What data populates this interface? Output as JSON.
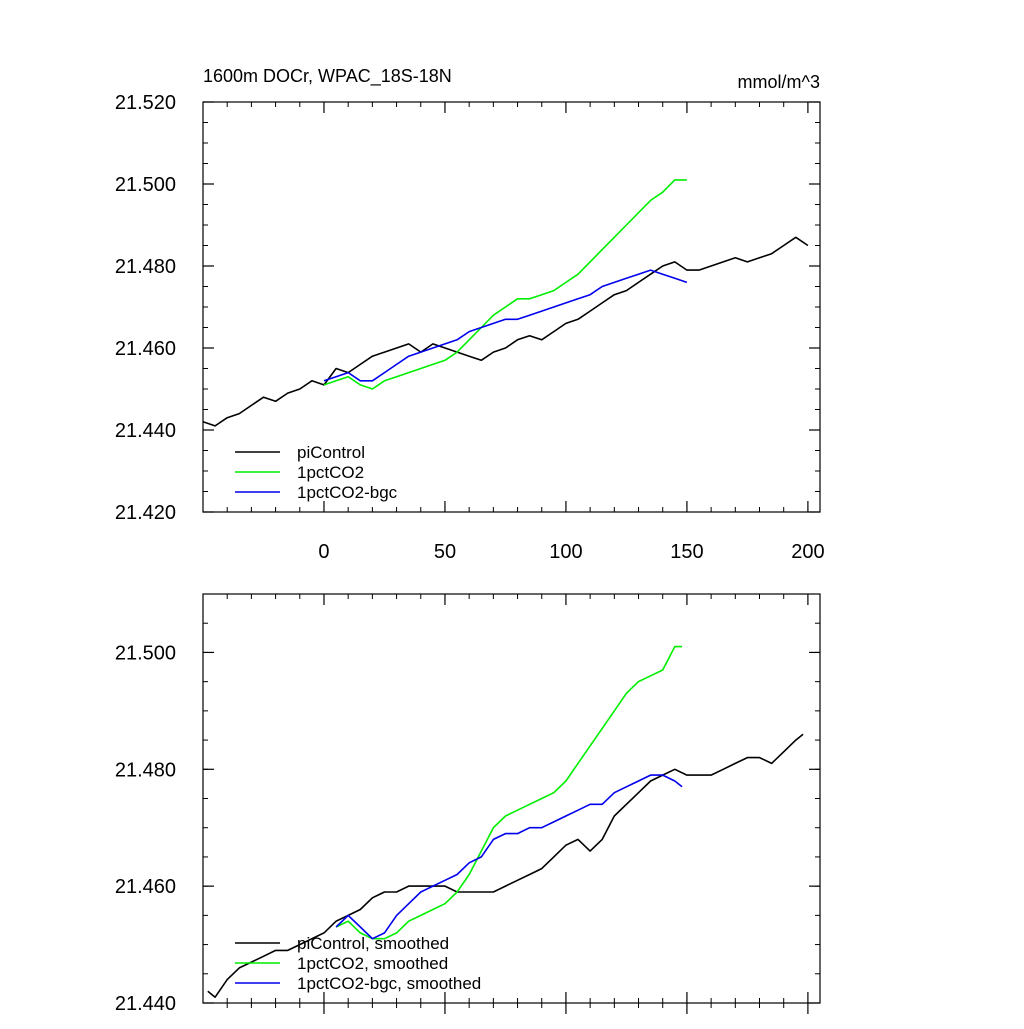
{
  "chart_data": [
    {
      "type": "line",
      "title": "1600m DOCr, WPAC_18S-18N",
      "units": "mmol/m^3",
      "xlim": [
        -50,
        205
      ],
      "ylim": [
        21.42,
        21.52
      ],
      "xticks": [
        0,
        50,
        100,
        150,
        200
      ],
      "xtick_labels": [
        "0",
        "50",
        "100",
        "150",
        "200"
      ],
      "yticks": [
        21.42,
        21.44,
        21.46,
        21.48,
        21.5,
        21.52
      ],
      "ytick_labels": [
        "21.420",
        "21.440",
        "21.460",
        "21.480",
        "21.500",
        "21.520"
      ],
      "legend_position": "bottom-left",
      "series": [
        {
          "name": "piControl",
          "color": "#000000",
          "x": [
            -50,
            -45,
            -40,
            -35,
            -30,
            -25,
            -20,
            -15,
            -10,
            -5,
            0,
            5,
            10,
            15,
            20,
            25,
            30,
            35,
            40,
            45,
            50,
            55,
            60,
            65,
            70,
            75,
            80,
            85,
            90,
            95,
            100,
            105,
            110,
            115,
            120,
            125,
            130,
            135,
            140,
            145,
            150,
            155,
            160,
            165,
            170,
            175,
            180,
            185,
            190,
            195,
            200
          ],
          "values": [
            21.442,
            21.441,
            21.443,
            21.444,
            21.446,
            21.448,
            21.447,
            21.449,
            21.45,
            21.452,
            21.451,
            21.455,
            21.454,
            21.456,
            21.458,
            21.459,
            21.46,
            21.461,
            21.459,
            21.461,
            21.46,
            21.459,
            21.458,
            21.457,
            21.459,
            21.46,
            21.462,
            21.463,
            21.462,
            21.464,
            21.466,
            21.467,
            21.469,
            21.471,
            21.473,
            21.474,
            21.476,
            21.478,
            21.48,
            21.481,
            21.479,
            21.479,
            21.48,
            21.481,
            21.482,
            21.481,
            21.482,
            21.483,
            21.485,
            21.487,
            21.485
          ]
        },
        {
          "name": "1pctCO2",
          "color": "#00ee00",
          "x": [
            0,
            5,
            10,
            15,
            20,
            25,
            30,
            35,
            40,
            45,
            50,
            55,
            60,
            65,
            70,
            75,
            80,
            85,
            90,
            95,
            100,
            105,
            110,
            115,
            120,
            125,
            130,
            135,
            140,
            145,
            150
          ],
          "values": [
            21.451,
            21.452,
            21.453,
            21.451,
            21.45,
            21.452,
            21.453,
            21.454,
            21.455,
            21.456,
            21.457,
            21.459,
            21.462,
            21.465,
            21.468,
            21.47,
            21.472,
            21.472,
            21.473,
            21.474,
            21.476,
            21.478,
            21.481,
            21.484,
            21.487,
            21.49,
            21.493,
            21.496,
            21.498,
            21.501,
            21.501
          ]
        },
        {
          "name": "1pctCO2-bgc",
          "color": "#0000ee",
          "x": [
            0,
            5,
            10,
            15,
            20,
            25,
            30,
            35,
            40,
            45,
            50,
            55,
            60,
            65,
            70,
            75,
            80,
            85,
            90,
            95,
            100,
            105,
            110,
            115,
            120,
            125,
            130,
            135,
            140,
            145,
            150
          ],
          "values": [
            21.452,
            21.453,
            21.454,
            21.452,
            21.452,
            21.454,
            21.456,
            21.458,
            21.459,
            21.46,
            21.461,
            21.462,
            21.464,
            21.465,
            21.466,
            21.467,
            21.467,
            21.468,
            21.469,
            21.47,
            21.471,
            21.472,
            21.473,
            21.475,
            21.476,
            21.477,
            21.478,
            21.479,
            21.478,
            21.477,
            21.476
          ]
        }
      ]
    },
    {
      "type": "line",
      "title": "",
      "xlim": [
        -50,
        205
      ],
      "ylim": [
        21.44,
        21.51
      ],
      "yticks": [
        21.44,
        21.46,
        21.48,
        21.5
      ],
      "ytick_labels": [
        "21.440",
        "21.460",
        "21.480",
        "21.500"
      ],
      "legend_position": "bottom-left",
      "series": [
        {
          "name": "piControl, smoothed",
          "color": "#000000",
          "x": [
            -48,
            -45,
            -40,
            -35,
            -30,
            -25,
            -20,
            -15,
            -10,
            -5,
            0,
            5,
            10,
            15,
            20,
            25,
            30,
            35,
            40,
            45,
            50,
            55,
            60,
            65,
            70,
            75,
            80,
            85,
            90,
            95,
            100,
            105,
            110,
            115,
            120,
            125,
            130,
            135,
            140,
            145,
            150,
            155,
            160,
            165,
            170,
            175,
            180,
            185,
            190,
            195,
            198
          ],
          "values": [
            21.442,
            21.441,
            21.444,
            21.446,
            21.447,
            21.448,
            21.449,
            21.449,
            21.45,
            21.451,
            21.452,
            21.454,
            21.455,
            21.456,
            21.458,
            21.459,
            21.459,
            21.46,
            21.46,
            21.46,
            21.46,
            21.459,
            21.459,
            21.459,
            21.459,
            21.46,
            21.461,
            21.462,
            21.463,
            21.465,
            21.467,
            21.468,
            21.466,
            21.468,
            21.472,
            21.474,
            21.476,
            21.478,
            21.479,
            21.48,
            21.479,
            21.479,
            21.479,
            21.48,
            21.481,
            21.482,
            21.482,
            21.481,
            21.483,
            21.485,
            21.486
          ]
        },
        {
          "name": "1pctCO2, smoothed",
          "color": "#00ee00",
          "x": [
            5,
            10,
            15,
            20,
            25,
            30,
            35,
            40,
            45,
            50,
            55,
            60,
            65,
            70,
            75,
            80,
            85,
            90,
            95,
            100,
            105,
            110,
            115,
            120,
            125,
            130,
            135,
            140,
            145,
            148
          ],
          "values": [
            21.453,
            21.454,
            21.452,
            21.451,
            21.451,
            21.452,
            21.454,
            21.455,
            21.456,
            21.457,
            21.459,
            21.462,
            21.466,
            21.47,
            21.472,
            21.473,
            21.474,
            21.475,
            21.476,
            21.478,
            21.481,
            21.484,
            21.487,
            21.49,
            21.493,
            21.495,
            21.496,
            21.497,
            21.501,
            21.501
          ]
        },
        {
          "name": "1pctCO2-bgc, smoothed",
          "color": "#0000ee",
          "x": [
            5,
            10,
            15,
            20,
            25,
            30,
            35,
            40,
            45,
            50,
            55,
            60,
            65,
            70,
            75,
            80,
            85,
            90,
            95,
            100,
            105,
            110,
            115,
            120,
            125,
            130,
            135,
            140,
            145,
            148
          ],
          "values": [
            21.453,
            21.455,
            21.453,
            21.451,
            21.452,
            21.455,
            21.457,
            21.459,
            21.46,
            21.461,
            21.462,
            21.464,
            21.465,
            21.468,
            21.469,
            21.469,
            21.47,
            21.47,
            21.471,
            21.472,
            21.473,
            21.474,
            21.474,
            21.476,
            21.477,
            21.478,
            21.479,
            21.479,
            21.478,
            21.477
          ]
        }
      ]
    }
  ]
}
